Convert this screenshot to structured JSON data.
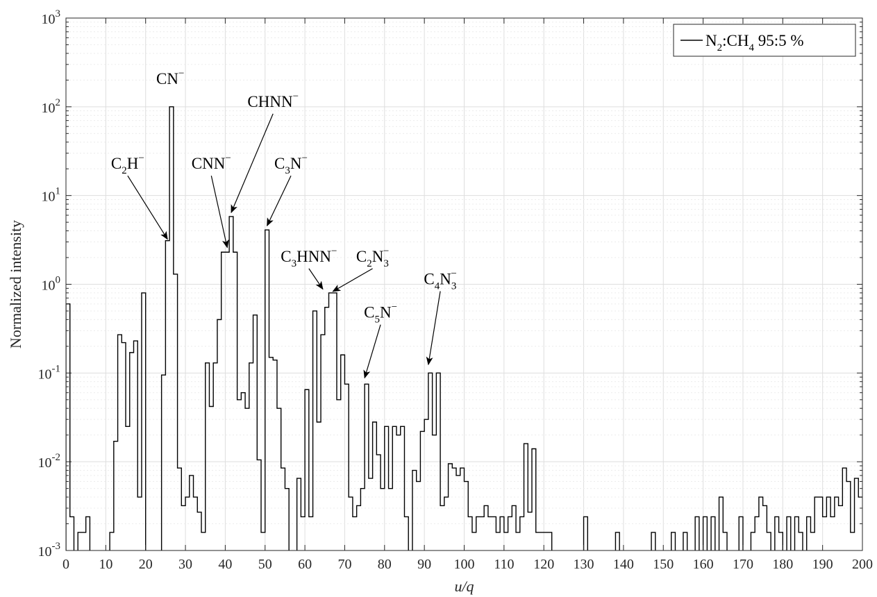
{
  "chart_data": {
    "type": "line",
    "xlabel": "u/q",
    "ylabel": "Normalized intensity",
    "xlim": [
      0,
      200
    ],
    "ylim": [
      0.001,
      1000
    ],
    "yscale": "log",
    "grid": true,
    "legend_position": "top-right",
    "x_ticks": [
      "0",
      "10",
      "20",
      "30",
      "40",
      "50",
      "60",
      "70",
      "80",
      "90",
      "100",
      "110",
      "120",
      "130",
      "140",
      "150",
      "160",
      "170",
      "180",
      "190",
      "200"
    ],
    "y_ticks": [
      {
        "base": "10",
        "exp": "-3"
      },
      {
        "base": "10",
        "exp": "-2"
      },
      {
        "base": "10",
        "exp": "-1"
      },
      {
        "base": "10",
        "exp": "0"
      },
      {
        "base": "10",
        "exp": "1"
      },
      {
        "base": "10",
        "exp": "2"
      },
      {
        "base": "10",
        "exp": "3"
      }
    ],
    "series": [
      {
        "name": "N2:CH4 95:5 %",
        "legend_parts": [
          {
            "t": "N",
            "s": "base"
          },
          {
            "t": "2",
            "s": "sub"
          },
          {
            "t": ":CH",
            "s": "base"
          },
          {
            "t": "4",
            "s": "sub"
          },
          {
            "t": " 95:5 %",
            "s": "base"
          }
        ],
        "color": "#000000",
        "step_x": [
          0,
          1,
          2,
          3,
          4,
          5,
          6,
          7,
          8,
          9,
          10,
          11,
          12,
          13,
          14,
          15,
          16,
          17,
          18,
          19,
          20,
          21,
          22,
          23,
          24,
          25,
          26,
          27,
          28,
          29,
          30,
          31,
          32,
          33,
          34,
          35,
          36,
          37,
          38,
          39,
          40,
          41,
          42,
          43,
          44,
          45,
          46,
          47,
          48,
          49,
          50,
          51,
          52,
          53,
          54,
          55,
          56,
          57,
          58,
          59,
          60,
          61,
          62,
          63,
          64,
          65,
          66,
          67,
          68,
          69,
          70,
          71,
          72,
          73,
          74,
          75,
          76,
          77,
          78,
          79,
          80,
          81,
          82,
          83,
          84,
          85,
          86,
          87,
          88,
          89,
          90,
          91,
          92,
          93,
          94,
          95,
          96,
          97,
          98,
          99,
          100,
          101,
          102,
          103,
          104,
          105,
          106,
          107,
          108,
          109,
          110,
          111,
          112,
          113,
          114,
          115,
          116,
          117,
          118,
          119,
          120,
          121,
          122,
          123,
          124,
          125,
          126,
          127,
          128,
          129,
          130,
          131,
          132,
          133,
          134,
          135,
          136,
          137,
          138,
          139,
          140,
          141,
          142,
          143,
          144,
          145,
          146,
          147,
          148,
          149,
          150,
          151,
          152,
          153,
          154,
          155,
          156,
          157,
          158,
          159,
          160,
          161,
          162,
          163,
          164,
          165,
          166,
          167,
          168,
          169,
          170,
          171,
          172,
          173,
          174,
          175,
          176,
          177,
          178,
          179,
          180,
          181,
          182,
          183,
          184,
          185,
          186,
          187,
          188,
          189,
          190,
          191,
          192,
          193,
          194,
          195,
          196,
          197,
          198,
          199
        ],
        "values": [
          0.6,
          0.0024,
          0.0008,
          0.0016,
          0.0016,
          0.0024,
          0.0008,
          0.0008,
          0.0008,
          0.0008,
          0.0008,
          0.0016,
          0.017,
          0.27,
          0.22,
          0.025,
          0.17,
          0.23,
          0.004,
          0.8,
          0.0004,
          0.0008,
          0.0008,
          0.0008,
          0.095,
          3.1,
          100,
          1.3,
          0.0085,
          0.0032,
          0.004,
          0.007,
          0.004,
          0.0027,
          0.0016,
          0.13,
          0.042,
          0.13,
          0.4,
          2.3,
          2.3,
          5.8,
          2.3,
          0.05,
          0.06,
          0.04,
          0.13,
          0.45,
          0.0105,
          0.0016,
          4.1,
          0.15,
          0.14,
          0.04,
          0.0085,
          0.005,
          0.0008,
          0.0008,
          0.0065,
          0.0024,
          0.065,
          0.0024,
          0.5,
          0.028,
          0.27,
          0.55,
          0.8,
          0.8,
          0.05,
          0.16,
          0.075,
          0.004,
          0.0024,
          0.0032,
          0.005,
          0.075,
          0.0065,
          0.028,
          0.012,
          0.005,
          0.025,
          0.005,
          0.025,
          0.02,
          0.025,
          0.0024,
          0.0008,
          0.008,
          0.006,
          0.022,
          0.03,
          0.1,
          0.02,
          0.1,
          0.0032,
          0.004,
          0.0095,
          0.0085,
          0.007,
          0.0085,
          0.006,
          0.0024,
          0.0016,
          0.0024,
          0.0024,
          0.0032,
          0.0024,
          0.0024,
          0.0016,
          0.0024,
          0.0016,
          0.0024,
          0.0032,
          0.0016,
          0.0024,
          0.016,
          0.0027,
          0.014,
          0.0016,
          0.0016,
          0.0016,
          0.0016,
          0.0008,
          0.0008,
          0.0008,
          0.0008,
          0.0008,
          0.0008,
          0.0008,
          0.0008,
          0.0024,
          0.0008,
          0.0008,
          0.0008,
          0.0008,
          0.0008,
          0.0008,
          0.0008,
          0.0016,
          0.0008,
          0.0008,
          0.0008,
          0.0008,
          0.0008,
          0.0008,
          0.0008,
          0.0008,
          0.0016,
          0.0008,
          0.0008,
          0.0008,
          0.0008,
          0.0016,
          0.0008,
          0.0008,
          0.0016,
          0.0008,
          0.0008,
          0.0024,
          0.0008,
          0.0024,
          0.0008,
          0.0024,
          0.0008,
          0.004,
          0.0016,
          0.0008,
          0.0008,
          0.0008,
          0.0024,
          0.0008,
          0.0008,
          0.0016,
          0.0024,
          0.004,
          0.0032,
          0.0016,
          0.0008,
          0.0024,
          0.0016,
          0.0008,
          0.0024,
          0.0008,
          0.0024,
          0.0016,
          0.0008,
          0.0024,
          0.0016,
          0.004,
          0.004,
          0.0024,
          0.004,
          0.0024,
          0.004,
          0.0032,
          0.0085,
          0.006,
          0.0016,
          0.0065,
          0.004,
          0.0045,
          0.0055,
          0.0055
        ]
      }
    ],
    "annotations": [
      {
        "label": "CN−",
        "parts": [
          {
            "t": "CN",
            "s": "base"
          },
          {
            "t": "−",
            "s": "sup"
          }
        ],
        "x": 26.5,
        "y": 100,
        "arrow": false,
        "text_x": 26.2,
        "text_y": 180
      },
      {
        "label": "C2H−",
        "parts": [
          {
            "t": "C",
            "s": "base"
          },
          {
            "t": "2",
            "s": "sub"
          },
          {
            "t": "H",
            "s": "base"
          },
          {
            "t": "−",
            "s": "sup"
          }
        ],
        "x": 25.5,
        "y": 3.1,
        "arrow": true,
        "text_x": 15.5,
        "text_y": 20
      },
      {
        "label": "CNN−",
        "parts": [
          {
            "t": "CNN",
            "s": "base"
          },
          {
            "t": "−",
            "s": "sup"
          }
        ],
        "x": 40.5,
        "y": 2.5,
        "arrow": true,
        "text_x": 36.5,
        "text_y": 20
      },
      {
        "label": "CHNN−",
        "parts": [
          {
            "t": "CHNN",
            "s": "base"
          },
          {
            "t": "−",
            "s": "sup"
          }
        ],
        "x": 41.5,
        "y": 6.2,
        "arrow": true,
        "text_x": 52,
        "text_y": 100
      },
      {
        "label": "C3N−",
        "parts": [
          {
            "t": "C",
            "s": "base"
          },
          {
            "t": "3",
            "s": "sub"
          },
          {
            "t": "N",
            "s": "base"
          },
          {
            "t": "−",
            "s": "sup"
          }
        ],
        "x": 50.5,
        "y": 4.4,
        "arrow": true,
        "text_x": 56.5,
        "text_y": 20
      },
      {
        "label": "C3HNN−",
        "parts": [
          {
            "t": "C",
            "s": "base"
          },
          {
            "t": "3",
            "s": "sub"
          },
          {
            "t": "HNN",
            "s": "base"
          },
          {
            "t": "−",
            "s": "sup"
          }
        ],
        "x": 64.5,
        "y": 0.85,
        "arrow": true,
        "text_x": 61,
        "text_y": 1.8
      },
      {
        "label": "C2N3−",
        "parts": [
          {
            "t": "C",
            "s": "base"
          },
          {
            "t": "2",
            "s": "sub"
          },
          {
            "t": "N",
            "s": "base"
          },
          {
            "t": "3",
            "s": "subsup"
          },
          {
            "t": "−",
            "s": "sup"
          }
        ],
        "x": 67,
        "y": 0.8,
        "arrow": true,
        "text_x": 77,
        "text_y": 1.8
      },
      {
        "label": "C5N−",
        "parts": [
          {
            "t": "C",
            "s": "base"
          },
          {
            "t": "5",
            "s": "sub"
          },
          {
            "t": "N",
            "s": "base"
          },
          {
            "t": "−",
            "s": "sup"
          }
        ],
        "x": 75,
        "y": 0.085,
        "arrow": true,
        "text_x": 79,
        "text_y": 0.42
      },
      {
        "label": "C4N3−",
        "parts": [
          {
            "t": "C",
            "s": "base"
          },
          {
            "t": "4",
            "s": "sub"
          },
          {
            "t": "N",
            "s": "base"
          },
          {
            "t": "3",
            "s": "subsup"
          },
          {
            "t": "−",
            "s": "sup"
          }
        ],
        "x": 91,
        "y": 0.12,
        "arrow": true,
        "text_x": 94,
        "text_y": 1.0
      }
    ]
  }
}
